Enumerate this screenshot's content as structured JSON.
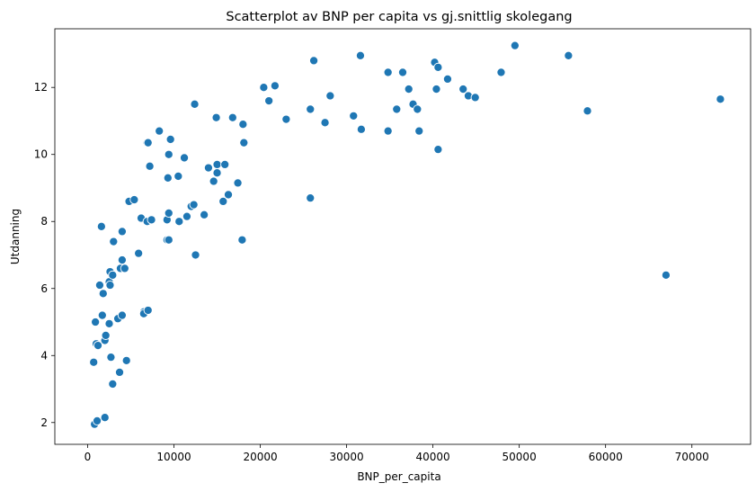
{
  "chart_data": {
    "type": "scatter",
    "title": "Scatterplot av BNP per capita vs gj.snittlig skolegang",
    "xlabel": "BNP_per_capita",
    "ylabel": "Utdanning",
    "xlim": [
      -3800,
      76800
    ],
    "ylim": [
      1.35,
      13.75
    ],
    "xticks": [
      0,
      10000,
      20000,
      30000,
      40000,
      50000,
      60000,
      70000
    ],
    "yticks": [
      2,
      4,
      6,
      8,
      10,
      12
    ],
    "xtick_labels": [
      "0",
      "10000",
      "20000",
      "30000",
      "40000",
      "50000",
      "60000",
      "70000"
    ],
    "ytick_labels": [
      "2",
      "4",
      "6",
      "8",
      "10",
      "12"
    ],
    "grid": false,
    "marker_color": "#1f77b4",
    "marker_edge_color": "#ffffff",
    "points": [
      {
        "x": 800,
        "y": 1.95
      },
      {
        "x": 1100,
        "y": 2.05
      },
      {
        "x": 2000,
        "y": 2.15
      },
      {
        "x": 700,
        "y": 3.8
      },
      {
        "x": 1000,
        "y": 4.35
      },
      {
        "x": 1200,
        "y": 4.3
      },
      {
        "x": 900,
        "y": 5.0
      },
      {
        "x": 1700,
        "y": 5.2
      },
      {
        "x": 2000,
        "y": 4.45
      },
      {
        "x": 2100,
        "y": 4.6
      },
      {
        "x": 2500,
        "y": 4.95
      },
      {
        "x": 1800,
        "y": 5.85
      },
      {
        "x": 1400,
        "y": 6.1
      },
      {
        "x": 2700,
        "y": 3.95
      },
      {
        "x": 3700,
        "y": 3.5
      },
      {
        "x": 2900,
        "y": 3.15
      },
      {
        "x": 4500,
        "y": 3.85
      },
      {
        "x": 3500,
        "y": 5.1
      },
      {
        "x": 4000,
        "y": 5.2
      },
      {
        "x": 2500,
        "y": 6.2
      },
      {
        "x": 2600,
        "y": 6.1
      },
      {
        "x": 2600,
        "y": 6.5
      },
      {
        "x": 2900,
        "y": 6.4
      },
      {
        "x": 3800,
        "y": 6.6
      },
      {
        "x": 4300,
        "y": 6.6
      },
      {
        "x": 4000,
        "y": 6.85
      },
      {
        "x": 3000,
        "y": 7.4
      },
      {
        "x": 4000,
        "y": 7.7
      },
      {
        "x": 1600,
        "y": 7.85
      },
      {
        "x": 4800,
        "y": 8.6
      },
      {
        "x": 5400,
        "y": 8.65
      },
      {
        "x": 5900,
        "y": 7.05
      },
      {
        "x": 6200,
        "y": 8.1
      },
      {
        "x": 6500,
        "y": 5.3
      },
      {
        "x": 6500,
        "y": 5.25
      },
      {
        "x": 7000,
        "y": 5.35
      },
      {
        "x": 6900,
        "y": 8.0
      },
      {
        "x": 7400,
        "y": 8.05
      },
      {
        "x": 6900,
        "y": 10.35
      },
      {
        "x": 7000,
        "y": 10.35
      },
      {
        "x": 7200,
        "y": 9.65
      },
      {
        "x": 8300,
        "y": 10.7
      },
      {
        "x": 9200,
        "y": 7.45
      },
      {
        "x": 9400,
        "y": 7.45
      },
      {
        "x": 9200,
        "y": 8.05
      },
      {
        "x": 9400,
        "y": 8.25
      },
      {
        "x": 9300,
        "y": 9.3
      },
      {
        "x": 9400,
        "y": 10.0
      },
      {
        "x": 9600,
        "y": 10.45
      },
      {
        "x": 10600,
        "y": 8.0
      },
      {
        "x": 10500,
        "y": 9.35
      },
      {
        "x": 11200,
        "y": 9.9
      },
      {
        "x": 11500,
        "y": 8.15
      },
      {
        "x": 12000,
        "y": 8.45
      },
      {
        "x": 12300,
        "y": 8.5
      },
      {
        "x": 12500,
        "y": 7.0
      },
      {
        "x": 12400,
        "y": 11.5
      },
      {
        "x": 13500,
        "y": 8.2
      },
      {
        "x": 14000,
        "y": 9.6
      },
      {
        "x": 14600,
        "y": 9.2
      },
      {
        "x": 15000,
        "y": 9.7
      },
      {
        "x": 15000,
        "y": 9.45
      },
      {
        "x": 14900,
        "y": 11.1
      },
      {
        "x": 15700,
        "y": 8.6
      },
      {
        "x": 15900,
        "y": 9.7
      },
      {
        "x": 16300,
        "y": 8.8
      },
      {
        "x": 16800,
        "y": 11.1
      },
      {
        "x": 17400,
        "y": 9.15
      },
      {
        "x": 17900,
        "y": 7.45
      },
      {
        "x": 18000,
        "y": 10.9
      },
      {
        "x": 18100,
        "y": 10.35
      },
      {
        "x": 20400,
        "y": 12.0
      },
      {
        "x": 21000,
        "y": 11.6
      },
      {
        "x": 21700,
        "y": 12.05
      },
      {
        "x": 23000,
        "y": 11.05
      },
      {
        "x": 25800,
        "y": 8.7
      },
      {
        "x": 25800,
        "y": 11.35
      },
      {
        "x": 26200,
        "y": 12.8
      },
      {
        "x": 27500,
        "y": 10.95
      },
      {
        "x": 28100,
        "y": 11.75
      },
      {
        "x": 30800,
        "y": 11.15
      },
      {
        "x": 31600,
        "y": 12.95
      },
      {
        "x": 31700,
        "y": 10.75
      },
      {
        "x": 34800,
        "y": 12.45
      },
      {
        "x": 34800,
        "y": 10.7
      },
      {
        "x": 35800,
        "y": 11.35
      },
      {
        "x": 36500,
        "y": 12.45
      },
      {
        "x": 37200,
        "y": 11.95
      },
      {
        "x": 37700,
        "y": 11.5
      },
      {
        "x": 38200,
        "y": 11.35
      },
      {
        "x": 38400,
        "y": 10.7
      },
      {
        "x": 40200,
        "y": 12.75
      },
      {
        "x": 40400,
        "y": 11.95
      },
      {
        "x": 40600,
        "y": 12.6
      },
      {
        "x": 40600,
        "y": 10.15
      },
      {
        "x": 41700,
        "y": 12.25
      },
      {
        "x": 43500,
        "y": 11.95
      },
      {
        "x": 44100,
        "y": 11.75
      },
      {
        "x": 44900,
        "y": 11.7
      },
      {
        "x": 47900,
        "y": 12.45
      },
      {
        "x": 49500,
        "y": 13.25
      },
      {
        "x": 55700,
        "y": 12.95
      },
      {
        "x": 57900,
        "y": 11.3
      },
      {
        "x": 67000,
        "y": 6.4
      },
      {
        "x": 73300,
        "y": 11.65
      }
    ]
  }
}
